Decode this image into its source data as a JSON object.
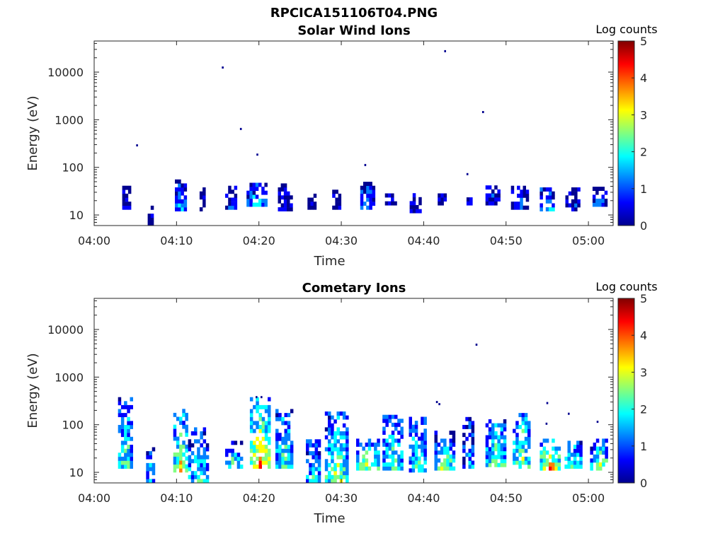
{
  "figure_title": "RPCICA151106T04.PNG",
  "colormap": [
    "#00008f",
    "#0000ff",
    "#0080ff",
    "#00ffff",
    "#80ff80",
    "#ffff00",
    "#ff8000",
    "#ff0000",
    "#800000"
  ],
  "chart_data": [
    {
      "type": "heatmap",
      "title": "Solar Wind Ions",
      "xlabel": "Time",
      "ylabel": "Energy (eV)",
      "x_ticks": [
        "04:00",
        "04:10",
        "04:20",
        "04:30",
        "04:40",
        "04:50",
        "05:00"
      ],
      "x_tick_minutes": [
        0,
        10,
        20,
        30,
        40,
        50,
        60
      ],
      "xlim_minutes": [
        0,
        63
      ],
      "y_scale": "log",
      "ylim": [
        6,
        45000
      ],
      "y_ticks": [
        10,
        100,
        1000,
        10000
      ],
      "y_tick_labels": [
        "10",
        "100",
        "1000",
        "10000"
      ],
      "colorbar_label": "Log counts",
      "colorbar_ticks": [
        "0",
        "1",
        "2",
        "3",
        "4",
        "5"
      ],
      "colorbar_range": [
        0,
        5
      ],
      "dots": [
        [
          5.2,
          290,
          0.3
        ],
        [
          15.6,
          12500,
          0.3
        ],
        [
          17.8,
          640,
          0.3
        ],
        [
          19.8,
          185,
          0.3
        ],
        [
          32.9,
          112,
          0.3
        ],
        [
          42.6,
          27500,
          0.3
        ],
        [
          45.3,
          72,
          0.3
        ],
        [
          47.2,
          1450,
          0.3
        ]
      ],
      "clusters": [
        {
          "t0": 3.4,
          "t1": 4.4,
          "e0": 13,
          "e1": 35,
          "lvl": 0.6
        },
        {
          "t0": 6.5,
          "t1": 7.1,
          "e0": 6,
          "e1": 16,
          "lvl": 0.2
        },
        {
          "t0": 9.8,
          "t1": 11.0,
          "e0": 12,
          "e1": 55,
          "lvl": 1.6
        },
        {
          "t0": 12.8,
          "t1": 13.5,
          "e0": 12,
          "e1": 35,
          "lvl": 0.3
        },
        {
          "t0": 15.9,
          "t1": 17.2,
          "e0": 13,
          "e1": 35,
          "lvl": 0.8
        },
        {
          "t0": 18.5,
          "t1": 20.8,
          "e0": 15,
          "e1": 45,
          "lvl": 1.8
        },
        {
          "t0": 22.3,
          "t1": 23.8,
          "e0": 12,
          "e1": 40,
          "lvl": 0.6
        },
        {
          "t0": 25.9,
          "t1": 26.9,
          "e0": 13,
          "e1": 28,
          "lvl": 0.5
        },
        {
          "t0": 28.9,
          "t1": 29.9,
          "e0": 13,
          "e1": 30,
          "lvl": 0.5
        },
        {
          "t0": 32.3,
          "t1": 33.9,
          "e0": 13,
          "e1": 42,
          "lvl": 1.6
        },
        {
          "t0": 35.3,
          "t1": 36.4,
          "e0": 16,
          "e1": 28,
          "lvl": 0.6
        },
        {
          "t0": 38.3,
          "t1": 39.4,
          "e0": 11,
          "e1": 28,
          "lvl": 0.4
        },
        {
          "t0": 41.7,
          "t1": 42.7,
          "e0": 16,
          "e1": 28,
          "lvl": 0.6
        },
        {
          "t0": 45.2,
          "t1": 45.9,
          "e0": 16,
          "e1": 23,
          "lvl": 0.4
        },
        {
          "t0": 47.5,
          "t1": 49.2,
          "e0": 16,
          "e1": 40,
          "lvl": 0.9
        },
        {
          "t0": 50.6,
          "t1": 52.7,
          "e0": 13,
          "e1": 40,
          "lvl": 0.9
        },
        {
          "t0": 54.1,
          "t1": 55.9,
          "e0": 12,
          "e1": 35,
          "lvl": 1.8
        },
        {
          "t0": 57.2,
          "t1": 59.0,
          "e0": 12,
          "e1": 32,
          "lvl": 0.7
        },
        {
          "t0": 60.5,
          "t1": 62.0,
          "e0": 15,
          "e1": 35,
          "lvl": 1.3
        }
      ]
    },
    {
      "type": "heatmap",
      "title": "Cometary Ions",
      "xlabel": "Time",
      "ylabel": "Energy (eV)",
      "x_ticks": [
        "04:00",
        "04:10",
        "04:20",
        "04:30",
        "04:40",
        "04:50",
        "05:00"
      ],
      "x_tick_minutes": [
        0,
        10,
        20,
        30,
        40,
        50,
        60
      ],
      "xlim_minutes": [
        0,
        63
      ],
      "y_scale": "log",
      "ylim": [
        6,
        45000
      ],
      "y_ticks": [
        10,
        100,
        1000,
        10000
      ],
      "y_tick_labels": [
        "10",
        "100",
        "1000",
        "10000"
      ],
      "colorbar_label": "Log counts",
      "colorbar_ticks": [
        "0",
        "1",
        "2",
        "3",
        "4",
        "5"
      ],
      "colorbar_range": [
        0,
        5
      ],
      "dots": [
        [
          46.4,
          4800,
          0.3
        ],
        [
          41.6,
          300,
          0.3
        ],
        [
          41.9,
          270,
          0.3
        ],
        [
          19.7,
          380,
          0.3
        ],
        [
          20.3,
          380,
          0.3
        ],
        [
          55.0,
          285,
          0.3
        ],
        [
          54.9,
          105,
          0.3
        ],
        [
          57.6,
          170,
          0.3
        ],
        [
          61.1,
          115,
          0.3
        ]
      ],
      "clusters": [
        {
          "t0": 2.9,
          "t1": 4.5,
          "e0": 12,
          "e1": 320,
          "lvl": 2.4
        },
        {
          "t0": 6.3,
          "t1": 7.3,
          "e0": 6,
          "e1": 40,
          "lvl": 1.6
        },
        {
          "t0": 9.6,
          "t1": 11.2,
          "e0": 10,
          "e1": 180,
          "lvl": 3.3
        },
        {
          "t0": 11.4,
          "t1": 13.6,
          "e0": 6,
          "e1": 75,
          "lvl": 2.0
        },
        {
          "t0": 15.9,
          "t1": 17.8,
          "e0": 12,
          "e1": 38,
          "lvl": 2.3
        },
        {
          "t0": 18.9,
          "t1": 21.2,
          "e0": 12,
          "e1": 360,
          "lvl": 3.6
        },
        {
          "t0": 22.0,
          "t1": 23.8,
          "e0": 12,
          "e1": 210,
          "lvl": 2.4
        },
        {
          "t0": 25.7,
          "t1": 27.4,
          "e0": 6,
          "e1": 45,
          "lvl": 2.2
        },
        {
          "t0": 28.0,
          "t1": 30.6,
          "e0": 6,
          "e1": 160,
          "lvl": 2.7
        },
        {
          "t0": 31.8,
          "t1": 34.4,
          "e0": 11,
          "e1": 45,
          "lvl": 2.7
        },
        {
          "t0": 35.0,
          "t1": 37.3,
          "e0": 11,
          "e1": 140,
          "lvl": 2.4
        },
        {
          "t0": 38.2,
          "t1": 40.2,
          "e0": 10,
          "e1": 140,
          "lvl": 2.4
        },
        {
          "t0": 41.3,
          "t1": 43.5,
          "e0": 11,
          "e1": 70,
          "lvl": 2.6
        },
        {
          "t0": 44.7,
          "t1": 46.1,
          "e0": 12,
          "e1": 160,
          "lvl": 1.6
        },
        {
          "t0": 47.5,
          "t1": 49.9,
          "e0": 13,
          "e1": 120,
          "lvl": 2.6
        },
        {
          "t0": 50.8,
          "t1": 52.9,
          "e0": 12,
          "e1": 160,
          "lvl": 2.6
        },
        {
          "t0": 54.1,
          "t1": 56.3,
          "e0": 11,
          "e1": 48,
          "lvl": 3.5
        },
        {
          "t0": 57.1,
          "t1": 59.1,
          "e0": 12,
          "e1": 45,
          "lvl": 2.3
        },
        {
          "t0": 60.2,
          "t1": 62.3,
          "e0": 11,
          "e1": 48,
          "lvl": 2.7
        }
      ]
    }
  ]
}
